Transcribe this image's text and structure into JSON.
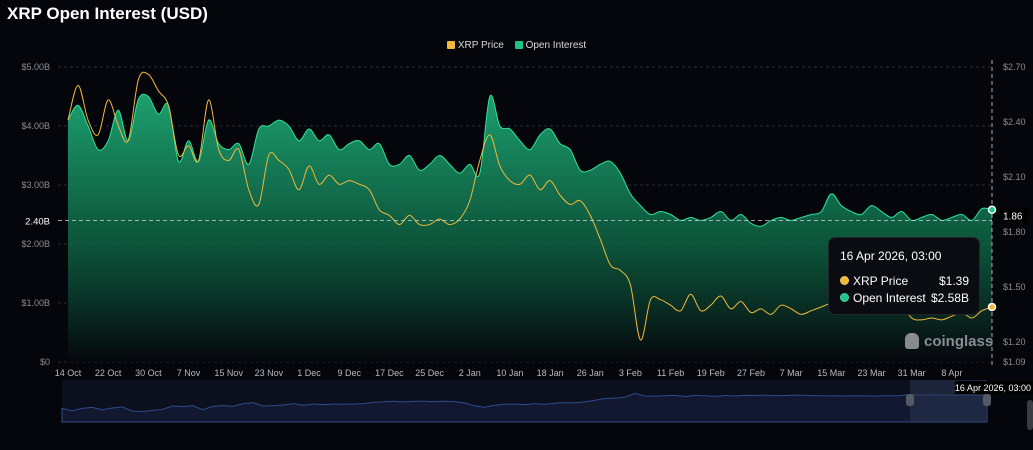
{
  "title": "XRP Open Interest (USD)",
  "colors": {
    "price": "#f0b93a",
    "oi": "#1ec486",
    "background": "#05060b"
  },
  "tooltip": {
    "date": "16 Apr 2026, 03:00",
    "price_label": "XRP Price",
    "price_value": "$1.39",
    "oi_label": "Open Interest",
    "oi_value": "$2.58B"
  },
  "crosshair": {
    "left_label": "2.40B",
    "right_label": "1.86",
    "x_label": "16 Apr 2026, 03:00"
  },
  "watermark": "coinglass",
  "chart_data": {
    "type": "area",
    "title": "XRP Open Interest (USD)",
    "legend": "top-center",
    "grid": true,
    "left_axis": {
      "unit": "USD",
      "range": [
        0,
        5
      ],
      "ticks": [
        "$0",
        "$1.00B",
        "$2.00B",
        "$3.00B",
        "$4.00B",
        "$5.00B"
      ]
    },
    "right_axis": {
      "range": [
        1.09,
        2.7
      ],
      "ticks": [
        "$1.09",
        "$1.20",
        "$1.50",
        "$1.80",
        "$2.10",
        "$2.40",
        "$2.70"
      ]
    },
    "x_ticks": [
      "14 Oct",
      "22 Oct",
      "30 Oct",
      "7 Nov",
      "15 Nov",
      "23 Nov",
      "1 Dec",
      "9 Dec",
      "17 Dec",
      "25 Dec",
      "2 Jan",
      "10 Jan",
      "18 Jan",
      "26 Jan",
      "3 Feb",
      "11 Feb",
      "19 Feb",
      "27 Feb",
      "7 Mar",
      "15 Mar",
      "23 Mar",
      "31 Mar",
      "8 Apr"
    ],
    "start": "2025-10-14",
    "step_days": 2,
    "series": [
      {
        "name": "Open Interest",
        "axis": "left",
        "unit": "billion USD",
        "values": [
          4.1,
          4.35,
          4.0,
          3.6,
          3.75,
          4.27,
          3.75,
          4.45,
          4.5,
          4.2,
          4.35,
          3.4,
          3.75,
          3.4,
          4.1,
          3.7,
          3.6,
          3.7,
          3.35,
          3.95,
          4.0,
          4.1,
          4.0,
          3.75,
          3.95,
          3.75,
          3.85,
          3.6,
          3.7,
          3.75,
          3.6,
          3.7,
          3.35,
          3.35,
          3.5,
          3.25,
          3.35,
          3.5,
          3.35,
          3.2,
          3.35,
          3.2,
          4.5,
          4.0,
          3.95,
          3.75,
          3.6,
          3.85,
          3.95,
          3.7,
          3.6,
          3.25,
          3.25,
          3.35,
          3.4,
          3.2,
          2.85,
          2.65,
          2.5,
          2.55,
          2.5,
          2.4,
          2.45,
          2.4,
          2.45,
          2.55,
          2.4,
          2.5,
          2.35,
          2.3,
          2.4,
          2.45,
          2.4,
          2.45,
          2.5,
          2.55,
          2.85,
          2.65,
          2.55,
          2.5,
          2.65,
          2.55,
          2.45,
          2.55,
          2.4,
          2.45,
          2.5,
          2.4,
          2.45,
          2.5,
          2.4,
          2.6,
          2.58
        ]
      },
      {
        "name": "XRP Price",
        "axis": "right",
        "unit": "USD",
        "values": [
          2.41,
          2.6,
          2.41,
          2.33,
          2.52,
          2.38,
          2.3,
          2.63,
          2.66,
          2.57,
          2.49,
          2.22,
          2.27,
          2.19,
          2.52,
          2.25,
          2.19,
          2.25,
          2.03,
          1.95,
          2.22,
          2.19,
          2.14,
          2.03,
          2.16,
          2.06,
          2.11,
          2.06,
          2.08,
          2.06,
          2.03,
          1.92,
          1.89,
          1.84,
          1.89,
          1.84,
          1.84,
          1.87,
          1.84,
          1.87,
          1.97,
          2.19,
          2.33,
          2.16,
          2.08,
          2.06,
          2.11,
          2.03,
          2.08,
          2.0,
          1.95,
          1.97,
          1.89,
          1.76,
          1.62,
          1.59,
          1.51,
          1.21,
          1.43,
          1.43,
          1.4,
          1.37,
          1.46,
          1.37,
          1.4,
          1.45,
          1.38,
          1.42,
          1.36,
          1.38,
          1.35,
          1.4,
          1.38,
          1.35,
          1.37,
          1.39,
          1.41,
          1.4,
          1.42,
          1.4,
          1.41,
          1.42,
          1.4,
          1.41,
          1.33,
          1.32,
          1.33,
          1.32,
          1.34,
          1.36,
          1.33,
          1.37,
          1.39
        ]
      }
    ]
  }
}
